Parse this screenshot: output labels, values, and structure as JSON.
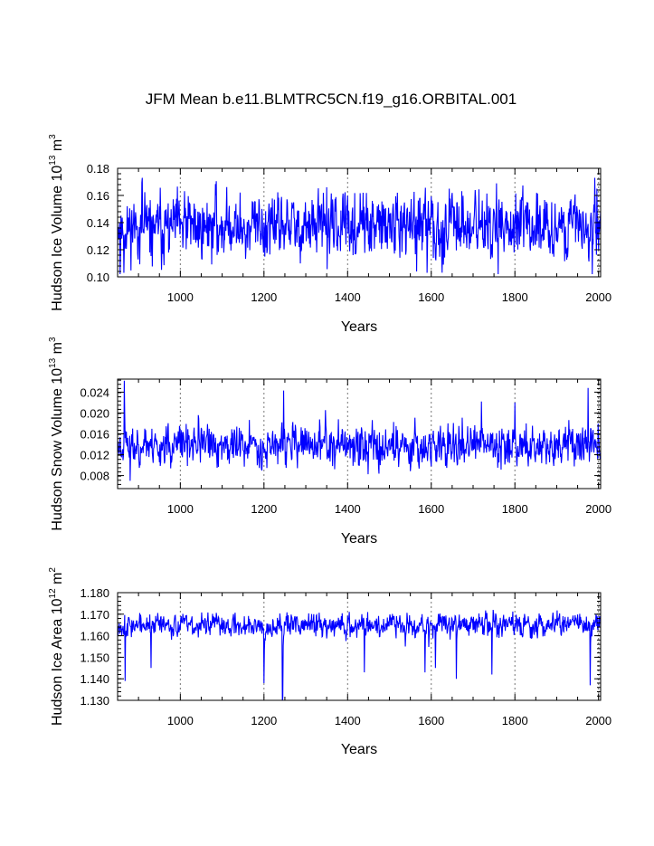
{
  "title": "JFM Mean b.e11.BLMTRC5CN.f19_g16.ORBITAL.001",
  "colors": {
    "line": "#0000ff",
    "axis": "#000000",
    "grid": "#777777"
  },
  "chart_data": [
    {
      "type": "line",
      "name": "ice-volume",
      "ylabel_main": "Hudson Ice Volume 10",
      "ylabel_exp": "13",
      "ylabel_unit": " m",
      "ylabel_unit_exp": "3",
      "xlabel": "Years",
      "xlim": [
        850,
        2005
      ],
      "ylim": [
        0.1,
        0.18
      ],
      "xticks": [
        1000,
        1200,
        1400,
        1600,
        1800,
        2000
      ],
      "xtick_labels": [
        "1000",
        "1200",
        "1400",
        "1600",
        "1800",
        "2000"
      ],
      "yticks": [
        0.1,
        0.12,
        0.14,
        0.16,
        0.18
      ],
      "ytick_labels": [
        "0.10",
        "0.12",
        "0.14",
        "0.16",
        "0.18"
      ],
      "vlines": [
        1000,
        1200,
        1400,
        1600,
        1800,
        2000
      ],
      "series": {
        "mean": 0.137,
        "amplitude": 0.011,
        "min": 0.102,
        "max": 0.173,
        "seed": 11,
        "spikes": [
          [
            856,
            0.102
          ],
          [
            865,
            0.103
          ],
          [
            1565,
            0.104
          ],
          [
            1590,
            0.103
          ],
          [
            1985,
            0.102
          ],
          [
            1991,
            0.173
          ],
          [
            1996,
            0.165
          ],
          [
            1350,
            0.166
          ],
          [
            1705,
            0.164
          ]
        ]
      }
    },
    {
      "type": "line",
      "name": "snow-volume",
      "ylabel_main": "Hudson Snow Volume 10",
      "ylabel_exp": "13",
      "ylabel_unit": " m",
      "ylabel_unit_exp": "3",
      "xlabel": "Years",
      "xlim": [
        850,
        2005
      ],
      "ylim": [
        0.0055,
        0.0265
      ],
      "xticks": [
        1000,
        1200,
        1400,
        1600,
        1800,
        2000
      ],
      "xtick_labels": [
        "1000",
        "1200",
        "1400",
        "1600",
        "1800",
        "2000"
      ],
      "yticks": [
        0.008,
        0.012,
        0.016,
        0.02,
        0.024
      ],
      "ytick_labels": [
        "0.008",
        "0.012",
        "0.016",
        "0.020",
        "0.024"
      ],
      "vlines": [
        1000,
        1200,
        1400,
        1600,
        1800,
        2000
      ],
      "series": {
        "mean": 0.0138,
        "amplitude": 0.0018,
        "min": 0.0068,
        "max": 0.0262,
        "seed": 23,
        "spikes": [
          [
            866,
            0.0262
          ],
          [
            880,
            0.007
          ],
          [
            1247,
            0.0243
          ],
          [
            1975,
            0.0248
          ],
          [
            1720,
            0.0222
          ],
          [
            1800,
            0.022
          ]
        ]
      }
    },
    {
      "type": "line",
      "name": "ice-area",
      "ylabel_main": "Hudson Ice Area 10",
      "ylabel_exp": "12",
      "ylabel_unit": " m",
      "ylabel_unit_exp": "2",
      "xlabel": "Years",
      "xlim": [
        850,
        2005
      ],
      "ylim": [
        1.13,
        1.18
      ],
      "xticks": [
        1000,
        1200,
        1400,
        1600,
        1800,
        2000
      ],
      "xtick_labels": [
        "1000",
        "1200",
        "1400",
        "1600",
        "1800",
        "2000"
      ],
      "yticks": [
        1.13,
        1.14,
        1.15,
        1.16,
        1.17,
        1.18
      ],
      "ytick_labels": [
        "1.130",
        "1.140",
        "1.150",
        "1.160",
        "1.170",
        "1.180"
      ],
      "vlines": [
        1000,
        1200,
        1400,
        1600,
        1800,
        2000
      ],
      "series": {
        "mean": 1.165,
        "amplitude": 0.0025,
        "min": 1.13,
        "max": 1.172,
        "seed": 37,
        "spikes": [
          [
            868,
            1.139
          ],
          [
            930,
            1.145
          ],
          [
            1200,
            1.138
          ],
          [
            1244,
            1.13
          ],
          [
            1245,
            1.131
          ],
          [
            1440,
            1.143
          ],
          [
            1610,
            1.145
          ],
          [
            1585,
            1.143
          ],
          [
            1660,
            1.14
          ],
          [
            1745,
            1.142
          ],
          [
            1980,
            1.137
          ]
        ]
      }
    }
  ]
}
